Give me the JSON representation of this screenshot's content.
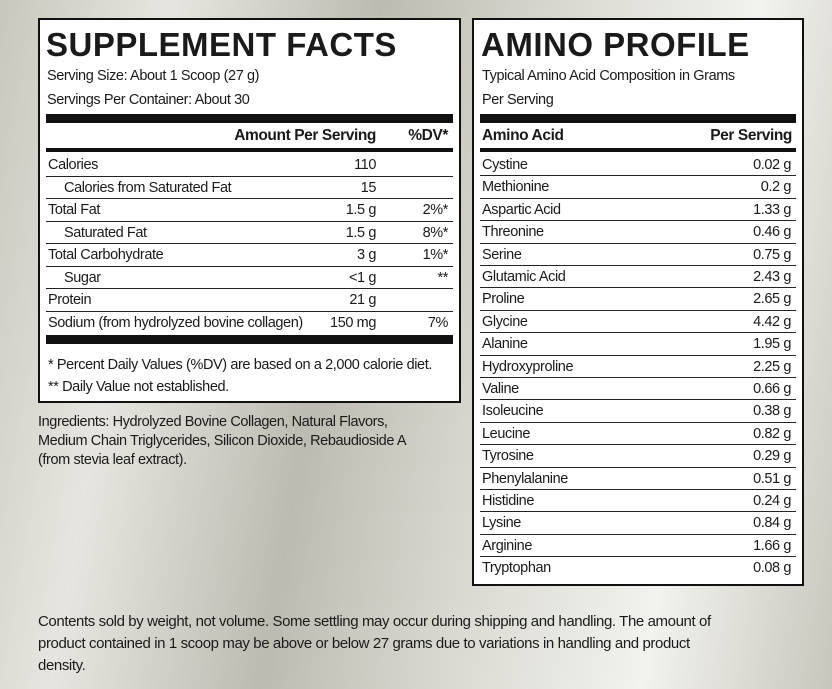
{
  "supplement_facts": {
    "title": "SUPPLEMENT FACTS",
    "serving_size": "Serving Size: About 1 Scoop (27 g)",
    "servings_per_container": "Servings Per Container: About 30",
    "header": [
      "Amount Per Serving",
      "%DV*"
    ],
    "rows": [
      {
        "name": "Calories",
        "amount": "110"
      },
      {
        "name": "Calories from Saturated Fat",
        "amount": "15",
        "indent": true
      },
      {
        "name": "Total Fat",
        "amount": "1.5 g",
        "dv": "2%*"
      },
      {
        "name": "Saturated Fat",
        "amount": "1.5 g",
        "dv": "8%*",
        "indent": true
      },
      {
        "name": "Total Carbohydrate",
        "amount": "3 g",
        "dv": "1%*"
      },
      {
        "name": "Sugar",
        "amount": "<1 g",
        "dv": "**",
        "indent": true
      },
      {
        "name": "Protein",
        "amount": "21 g"
      },
      {
        "name": "Sodium (from hydrolyzed bovine collagen)",
        "amount": "150 mg",
        "dv": "7%"
      }
    ],
    "footnotes": [
      "* Percent Daily Values (%DV) are based on a 2,000 calorie diet.",
      "** Daily Value not established."
    ]
  },
  "ingredients": [
    "Ingredients: Hydrolyzed Bovine Collagen, Natural Flavors,",
    "Medium Chain Triglycerides, Silicon Dioxide, Rebaudioside A",
    "(from stevia leaf extract)."
  ],
  "amino_profile": {
    "title": "AMINO PROFILE",
    "subtitle": [
      "Typical Amino Acid Composition in Grams",
      "Per Serving"
    ],
    "header": [
      "Amino Acid",
      "Per Serving"
    ],
    "rows": [
      [
        "Cystine",
        "0.02 g"
      ],
      [
        "Methionine",
        "0.2 g"
      ],
      [
        "Aspartic Acid",
        "1.33 g"
      ],
      [
        "Threonine",
        "0.46 g"
      ],
      [
        "Serine",
        "0.75 g"
      ],
      [
        "Glutamic Acid",
        "2.43 g"
      ],
      [
        "Proline",
        "2.65 g"
      ],
      [
        "Glycine",
        "4.42 g"
      ],
      [
        "Alanine",
        "1.95 g"
      ],
      [
        "Hydroxyproline",
        "2.25 g"
      ],
      [
        "Valine",
        "0.66 g"
      ],
      [
        "Isoleucine",
        "0.38 g"
      ],
      [
        "Leucine",
        "0.82 g"
      ],
      [
        "Tyrosine",
        "0.29 g"
      ],
      [
        "Phenylalanine",
        "0.51 g"
      ],
      [
        "Histidine",
        "0.24 g"
      ],
      [
        "Lysine",
        "0.84 g"
      ],
      [
        "Arginine",
        "1.66 g"
      ],
      [
        "Tryptophan",
        "0.08 g"
      ]
    ]
  },
  "disclaimer": [
    "Contents sold by weight, not volume. Some settling may occur during shipping and handling. The amount of",
    "product contained in 1 scoop may be above or below 27 grams due to variations in handling and product",
    "density."
  ]
}
